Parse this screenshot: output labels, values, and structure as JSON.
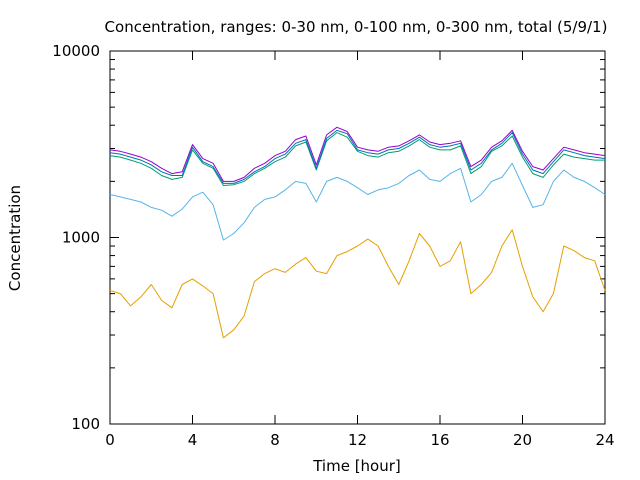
{
  "chart_data": {
    "type": "line",
    "title": "Concentration, ranges: 0-30 nm, 0-100 nm, 0-300 nm, total (5/9/1)",
    "xlabel": "Time [hour]",
    "ylabel": "Concentration",
    "xlim": [
      0,
      24
    ],
    "ylim": [
      100,
      10000
    ],
    "yscale": "log",
    "grid": false,
    "legend": "none",
    "x_ticks": [
      "0",
      "4",
      "8",
      "12",
      "16",
      "20",
      "24"
    ],
    "y_ticks": [
      "100",
      "1000",
      "10000"
    ],
    "x": [
      0,
      0.5,
      1,
      1.5,
      2,
      2.5,
      3,
      3.5,
      4,
      4.5,
      5,
      5.5,
      6,
      6.5,
      7,
      7.5,
      8,
      8.5,
      9,
      9.5,
      10,
      10.5,
      11,
      11.5,
      12,
      12.5,
      13,
      13.5,
      14,
      14.5,
      15,
      15.5,
      16,
      16.5,
      17,
      17.5,
      18,
      18.5,
      19,
      19.5,
      20,
      20.5,
      21,
      21.5,
      22,
      22.5,
      23,
      23.5,
      24
    ],
    "series": [
      {
        "color": "#e69f00",
        "values": [
          520,
          500,
          430,
          480,
          560,
          460,
          420,
          560,
          600,
          550,
          500,
          290,
          320,
          380,
          580,
          640,
          680,
          650,
          720,
          780,
          660,
          640,
          800,
          840,
          900,
          980,
          900,
          700,
          560,
          750,
          1050,
          900,
          700,
          750,
          950,
          500,
          560,
          650,
          900,
          1100,
          700,
          480,
          400,
          500,
          900,
          850,
          780,
          750,
          520
        ]
      },
      {
        "color": "#56b4e9",
        "values": [
          1700,
          1650,
          1600,
          1550,
          1450,
          1400,
          1300,
          1420,
          1650,
          1750,
          1500,
          970,
          1050,
          1200,
          1450,
          1600,
          1650,
          1800,
          2000,
          1950,
          1550,
          2000,
          2100,
          2000,
          1850,
          1700,
          1800,
          1850,
          1950,
          2150,
          2300,
          2050,
          2000,
          2200,
          2350,
          1550,
          1700,
          2000,
          2100,
          2500,
          1900,
          1450,
          1500,
          2000,
          2300,
          2100,
          2000,
          1850,
          1700
        ]
      },
      {
        "color": "#009e73",
        "values": [
          2750,
          2700,
          2600,
          2500,
          2350,
          2150,
          2050,
          2100,
          2950,
          2500,
          2350,
          1900,
          1920,
          2000,
          2200,
          2350,
          2550,
          2700,
          3100,
          3250,
          2300,
          3300,
          3650,
          3450,
          2900,
          2750,
          2700,
          2850,
          2900,
          3100,
          3350,
          3050,
          2950,
          2950,
          3100,
          2200,
          2400,
          2900,
          3100,
          3500,
          2700,
          2200,
          2100,
          2450,
          2800,
          2700,
          2650,
          2600,
          2600
        ]
      },
      {
        "color": "#0072b2",
        "values": [
          2850,
          2800,
          2700,
          2600,
          2450,
          2250,
          2150,
          2150,
          3050,
          2550,
          2400,
          1950,
          1950,
          2050,
          2250,
          2400,
          2650,
          2800,
          3200,
          3350,
          2350,
          3400,
          3750,
          3600,
          2950,
          2850,
          2800,
          2950,
          3000,
          3200,
          3450,
          3150,
          3050,
          3100,
          3200,
          2300,
          2500,
          2950,
          3200,
          3650,
          2800,
          2300,
          2200,
          2550,
          2950,
          2850,
          2750,
          2700,
          2650
        ]
      },
      {
        "color": "#9400d3",
        "values": [
          2950,
          2900,
          2800,
          2700,
          2550,
          2350,
          2200,
          2250,
          3150,
          2650,
          2500,
          2000,
          2000,
          2100,
          2350,
          2500,
          2750,
          2900,
          3350,
          3500,
          2450,
          3550,
          3900,
          3700,
          3050,
          2950,
          2900,
          3050,
          3100,
          3300,
          3550,
          3250,
          3150,
          3200,
          3300,
          2400,
          2600,
          3050,
          3300,
          3750,
          2900,
          2400,
          2300,
          2650,
          3050,
          2950,
          2850,
          2800,
          2750
        ]
      }
    ]
  }
}
